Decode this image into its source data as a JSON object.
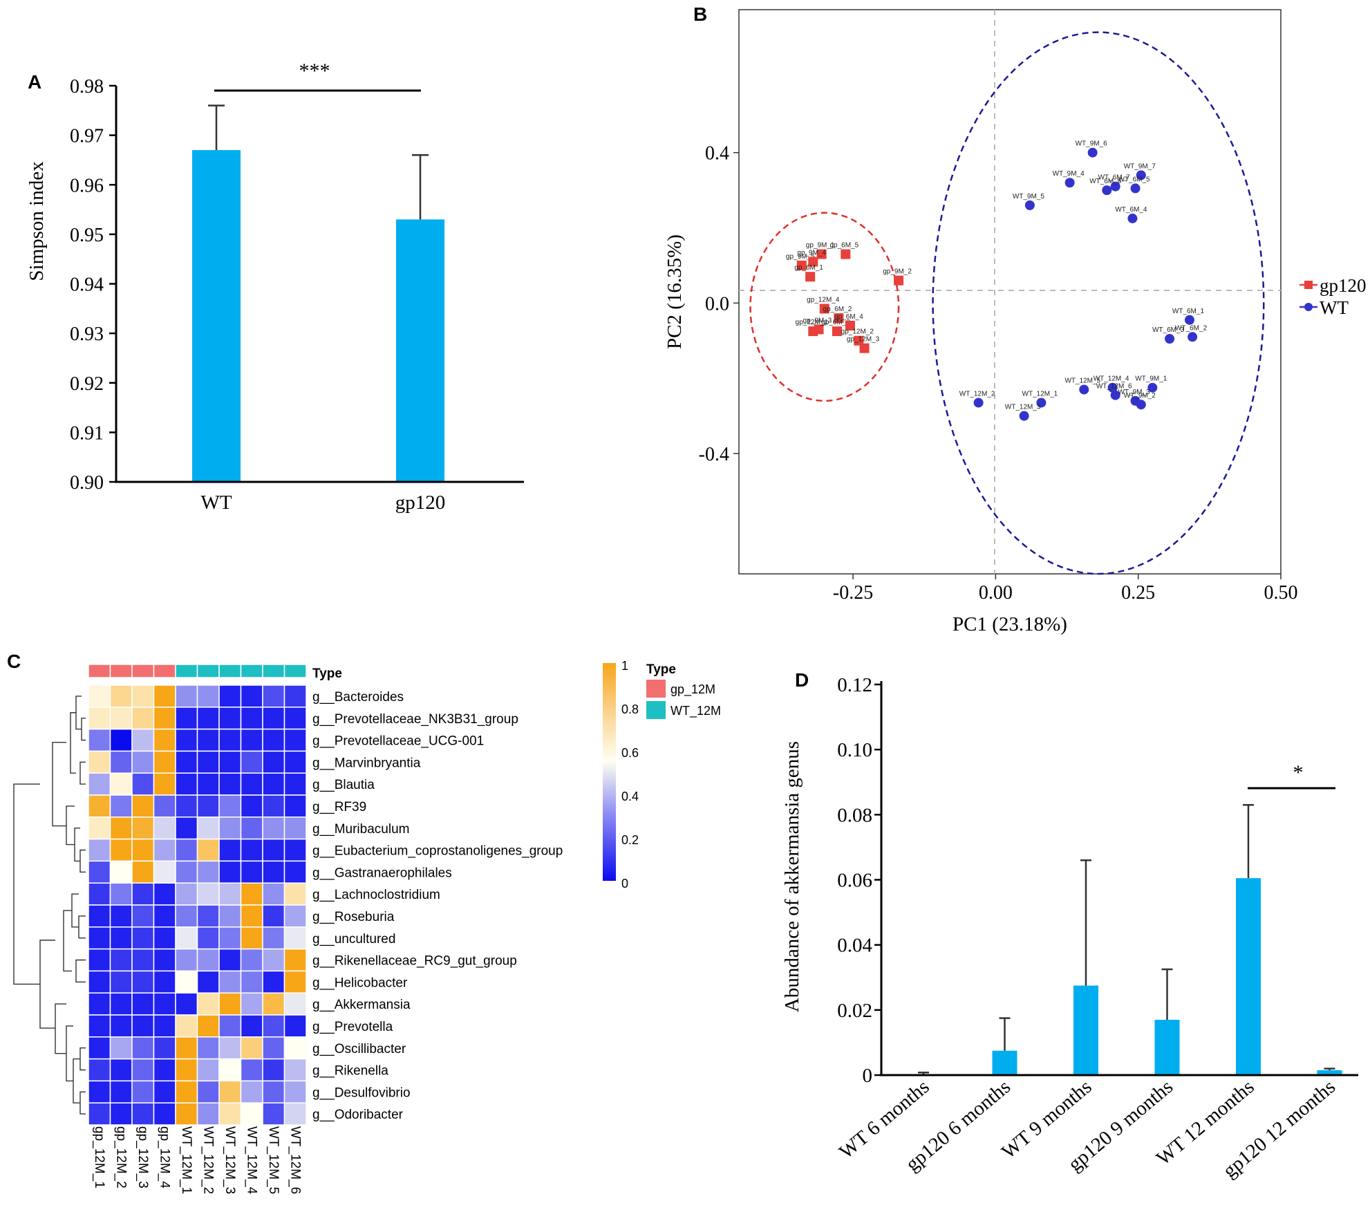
{
  "chart_data": [
    {
      "panel": "A",
      "type": "bar",
      "categories": [
        "WT",
        "gp120"
      ],
      "values": [
        0.967,
        0.953
      ],
      "errors": [
        0.009,
        0.013
      ],
      "ylabel": "Simpson index",
      "ylim": [
        0.9,
        0.98
      ],
      "yticks": [
        "0.98",
        "0.97",
        "0.96",
        "0.95",
        "0.94",
        "0.93",
        "0.92",
        "0.91",
        "0.90"
      ],
      "significance": "***",
      "bar_color": "#00aeef"
    },
    {
      "panel": "B",
      "type": "scatter",
      "xlabel": "PC1 (23.18%)",
      "ylabel": "PC2 (16.35%)",
      "xlim": [
        -0.45,
        0.5
      ],
      "ylim": [
        -0.72,
        0.78
      ],
      "xticks": [
        "-0.25",
        "0.00",
        "0.25",
        "0.50"
      ],
      "yticks": [
        "0.4",
        "0.0",
        "-0.4"
      ],
      "legend_position": "right",
      "series": [
        {
          "name": "gp120",
          "color": "#e8403a",
          "marker": "square",
          "ellipse": {
            "cx": -0.3,
            "cy": -0.01,
            "rx": 0.13,
            "ry": 0.25
          },
          "points": [
            {
              "label": "gp_9M_1",
              "x": -0.305,
              "y": 0.13
            },
            {
              "label": "gp_9M_5",
              "x": -0.34,
              "y": 0.1
            },
            {
              "label": "gp_9M_4",
              "x": -0.32,
              "y": 0.11
            },
            {
              "label": "gp_6M_1",
              "x": -0.325,
              "y": 0.07
            },
            {
              "label": "gp_6M_5",
              "x": -0.263,
              "y": 0.13
            },
            {
              "label": "gp_9M_2",
              "x": -0.17,
              "y": 0.06
            },
            {
              "label": "gp_12M_4",
              "x": -0.3,
              "y": -0.015
            },
            {
              "label": "gp_6M_2",
              "x": -0.275,
              "y": -0.04
            },
            {
              "label": "gp_9M_3",
              "x": -0.31,
              "y": -0.07
            },
            {
              "label": "gp_12M_1",
              "x": -0.32,
              "y": -0.075
            },
            {
              "label": "gp_6M_3",
              "x": -0.278,
              "y": -0.075
            },
            {
              "label": "gp_6M_4",
              "x": -0.255,
              "y": -0.06
            },
            {
              "label": "gp_12M_2",
              "x": -0.24,
              "y": -0.1
            },
            {
              "label": "gp_12M_3",
              "x": -0.23,
              "y": -0.12
            }
          ]
        },
        {
          "name": "WT",
          "color": "#3333cc",
          "marker": "circle",
          "ellipse": {
            "cx": 0.18,
            "cy": 0.0,
            "rx": 0.29,
            "ry": 0.72
          },
          "points": [
            {
              "label": "WT_9M_6",
              "x": 0.17,
              "y": 0.4
            },
            {
              "label": "WT_9M_4",
              "x": 0.13,
              "y": 0.32
            },
            {
              "label": "WT_9M_7",
              "x": 0.255,
              "y": 0.34
            },
            {
              "label": "WT_6M_7",
              "x": 0.21,
              "y": 0.31
            },
            {
              "label": "WT_6M_6",
              "x": 0.195,
              "y": 0.3
            },
            {
              "label": "WT_6M_5",
              "x": 0.245,
              "y": 0.305
            },
            {
              "label": "WT_9M_5",
              "x": 0.06,
              "y": 0.26
            },
            {
              "label": "WT_6M_4",
              "x": 0.24,
              "y": 0.225
            },
            {
              "label": "WT_6M_1",
              "x": 0.34,
              "y": -0.045
            },
            {
              "label": "WT_6M_2",
              "x": 0.345,
              "y": -0.09
            },
            {
              "label": "WT_6M_3",
              "x": 0.305,
              "y": -0.095
            },
            {
              "label": "WT_12M_2",
              "x": -0.03,
              "y": -0.265
            },
            {
              "label": "WT_12M_1",
              "x": 0.08,
              "y": -0.265
            },
            {
              "label": "WT_12M_3",
              "x": 0.05,
              "y": -0.3
            },
            {
              "label": "WT_12M_5",
              "x": 0.155,
              "y": -0.23
            },
            {
              "label": "WT_12M_4",
              "x": 0.205,
              "y": -0.225
            },
            {
              "label": "WT_12M_6",
              "x": 0.21,
              "y": -0.245
            },
            {
              "label": "WT_9M_1",
              "x": 0.275,
              "y": -0.225
            },
            {
              "label": "WT_9M_3",
              "x": 0.245,
              "y": -0.26
            },
            {
              "label": "WT_9M_2",
              "x": 0.255,
              "y": -0.27
            }
          ]
        }
      ]
    },
    {
      "panel": "C",
      "type": "heatmap",
      "columns": [
        "gp_12M_1",
        "gp_12M_2",
        "gp_12M_3",
        "gp_12M_4",
        "WT_12M_1",
        "WT_12M_2",
        "WT_12M_3",
        "WT_12M_4",
        "WT_12M_5",
        "WT_12M_6"
      ],
      "column_types": [
        "gp_12M",
        "gp_12M",
        "gp_12M",
        "gp_12M",
        "WT_12M",
        "WT_12M",
        "WT_12M",
        "WT_12M",
        "WT_12M",
        "WT_12M"
      ],
      "rows": [
        "g__Bacteroides",
        "g__Prevotellaceae_NK3B31_group",
        "g__Prevotellaceae_UCG-001",
        "g__Marvinbryantia",
        "g__Blautia",
        "g__RF39",
        "g__Muribaculum",
        "g__Eubacterium_coprostanoligenes_group",
        "g__Gastranaerophilales",
        "g__Lachnoclostridium",
        "g__Roseburia",
        "g__uncultured",
        "g__Rikenellaceae_RC9_gut_group",
        "g__Helicobacter",
        "g__Akkermansia",
        "g__Prevotella",
        "g__Oscillibacter",
        "g__Rikenella",
        "g__Desulfovibrio",
        "g__Odoribacter"
      ],
      "values": [
        [
          0.6,
          0.75,
          0.7,
          1.0,
          0.3,
          0.3,
          0.05,
          0.05,
          0.15,
          0.1
        ],
        [
          0.65,
          0.65,
          0.75,
          1.0,
          0.05,
          0.05,
          0.05,
          0.05,
          0.05,
          0.05
        ],
        [
          0.25,
          0.0,
          0.4,
          1.0,
          0.05,
          0.05,
          0.05,
          0.05,
          0.05,
          0.05
        ],
        [
          0.7,
          0.2,
          0.3,
          1.0,
          0.05,
          0.05,
          0.05,
          0.15,
          0.05,
          0.05
        ],
        [
          0.35,
          0.6,
          0.15,
          1.0,
          0.05,
          0.05,
          0.05,
          0.05,
          0.05,
          0.05
        ],
        [
          0.95,
          0.25,
          1.0,
          0.2,
          0.1,
          0.1,
          0.25,
          0.05,
          0.1,
          0.05
        ],
        [
          0.65,
          1.0,
          0.95,
          0.45,
          0.05,
          0.45,
          0.3,
          0.2,
          0.3,
          0.3
        ],
        [
          0.35,
          1.0,
          1.0,
          0.35,
          0.2,
          0.85,
          0.05,
          0.05,
          0.05,
          0.05
        ],
        [
          0.15,
          0.55,
          1.0,
          0.5,
          0.25,
          0.3,
          0.05,
          0.05,
          0.05,
          0.05
        ],
        [
          0.1,
          0.25,
          0.1,
          0.05,
          0.35,
          0.45,
          0.4,
          1.0,
          0.3,
          0.7
        ],
        [
          0.05,
          0.05,
          0.15,
          0.05,
          0.25,
          0.15,
          0.3,
          1.0,
          0.1,
          0.35
        ],
        [
          0.05,
          0.05,
          0.1,
          0.05,
          0.5,
          0.15,
          0.25,
          1.0,
          0.25,
          0.5
        ],
        [
          0.05,
          0.1,
          0.1,
          0.05,
          0.3,
          0.3,
          0.05,
          0.25,
          0.35,
          1.0
        ],
        [
          0.05,
          0.1,
          0.1,
          0.05,
          0.55,
          0.05,
          0.3,
          0.25,
          0.05,
          1.0
        ],
        [
          0.05,
          0.05,
          0.05,
          0.05,
          0.05,
          0.7,
          1.0,
          0.35,
          0.9,
          0.5
        ],
        [
          0.05,
          0.05,
          0.05,
          0.05,
          0.7,
          1.0,
          0.2,
          0.05,
          0.15,
          0.05
        ],
        [
          0.05,
          0.35,
          0.2,
          0.1,
          1.0,
          0.25,
          0.4,
          0.8,
          0.2,
          0.55
        ],
        [
          0.1,
          0.05,
          0.2,
          0.05,
          1.0,
          0.35,
          0.55,
          0.2,
          0.1,
          0.4
        ],
        [
          0.05,
          0.05,
          0.2,
          0.05,
          1.0,
          0.2,
          0.85,
          0.35,
          0.2,
          0.35
        ],
        [
          0.1,
          0.05,
          0.1,
          0.05,
          1.0,
          0.3,
          0.7,
          0.55,
          0.15,
          0.45
        ]
      ],
      "colorbar_ticks": [
        "1",
        "0.8",
        "0.6",
        "0.4",
        "0.2",
        "0"
      ],
      "colors": {
        "low": "#0b0bf0",
        "mid": "#fffff2",
        "high": "#f7a618",
        "gp_12M": "#f36f6f",
        "WT_12M": "#1ebfc3"
      },
      "legend_title": "Type",
      "legend_items": [
        "gp_12M",
        "WT_12M"
      ],
      "type_label": "Type"
    },
    {
      "panel": "D",
      "type": "bar",
      "categories": [
        "WT 6 months",
        "gp120 6 months",
        "WT 9 months",
        "gp120 9 months",
        "WT 12 months",
        "gp120 12 months"
      ],
      "values": [
        0.0,
        0.0075,
        0.0275,
        0.017,
        0.0605,
        0.0015
      ],
      "errors": [
        0.0008,
        0.01,
        0.0385,
        0.0155,
        0.0225,
        0.0005
      ],
      "ylabel": "Abundance of akkermansia genus",
      "ylim": [
        0,
        0.12
      ],
      "yticks": [
        "0.12",
        "0.10",
        "0.08",
        "0.06",
        "0.04",
        "0.02",
        "0"
      ],
      "significance": "*",
      "bar_color": "#00aeef"
    }
  ],
  "panel_labels": {
    "a": "A",
    "b": "B",
    "c": "C",
    "d": "D"
  }
}
